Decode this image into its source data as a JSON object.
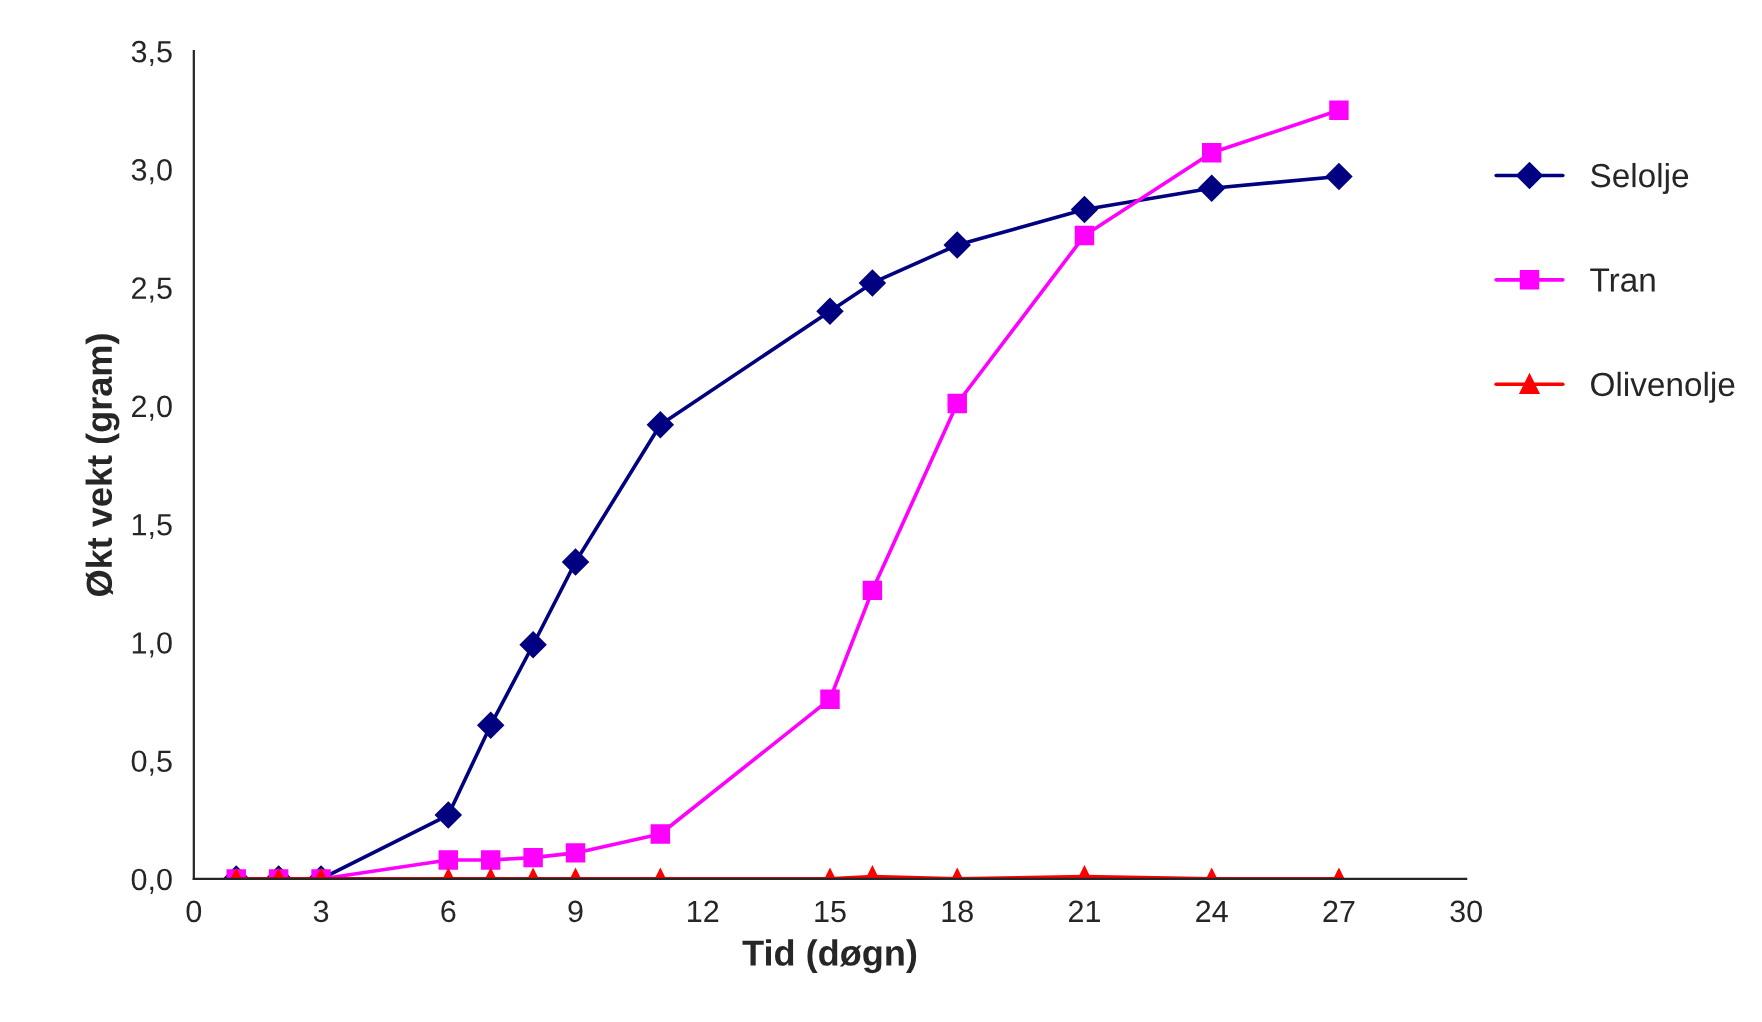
{
  "chart_data": {
    "type": "line",
    "xlabel": "Tid (døgn)",
    "ylabel": "Økt vekt (gram)",
    "x": [
      1,
      2,
      3,
      6,
      7,
      8,
      9,
      11,
      15,
      16,
      18,
      21,
      24,
      27
    ],
    "series": [
      {
        "name": "Selolje",
        "color": "#000080",
        "marker": "diamond",
        "values": [
          0,
          0,
          0,
          0.27,
          0.65,
          0.99,
          1.34,
          1.92,
          2.4,
          2.52,
          2.68,
          2.83,
          2.92,
          2.97
        ]
      },
      {
        "name": "Tran",
        "color": "#ff00ff",
        "marker": "square",
        "values": [
          0,
          0,
          0,
          0.08,
          0.08,
          0.09,
          0.11,
          0.19,
          0.76,
          1.22,
          2.01,
          2.72,
          3.07,
          3.25
        ]
      },
      {
        "name": "Olivenolje",
        "color": "#ff0000",
        "marker": "triangle",
        "values": [
          0,
          0,
          0,
          0,
          0,
          0,
          0,
          0,
          0,
          0.01,
          0,
          0.01,
          0,
          0
        ]
      }
    ],
    "xlim": [
      0,
      30
    ],
    "xticks": [
      0,
      3,
      6,
      9,
      12,
      15,
      18,
      21,
      24,
      27,
      30
    ],
    "ylim": [
      0,
      3.5
    ],
    "yticks": [
      {
        "value": 0,
        "label": "0,0"
      },
      {
        "value": 0.5,
        "label": "0,5"
      },
      {
        "value": 1,
        "label": "1,0"
      },
      {
        "value": 1.5,
        "label": "1,5"
      },
      {
        "value": 2,
        "label": "2,0"
      },
      {
        "value": 2.5,
        "label": "2,5"
      },
      {
        "value": 3,
        "label": "3,0"
      },
      {
        "value": 3.5,
        "label": "3,5"
      }
    ],
    "grid": false,
    "legend": "right",
    "line_style": "solid"
  }
}
